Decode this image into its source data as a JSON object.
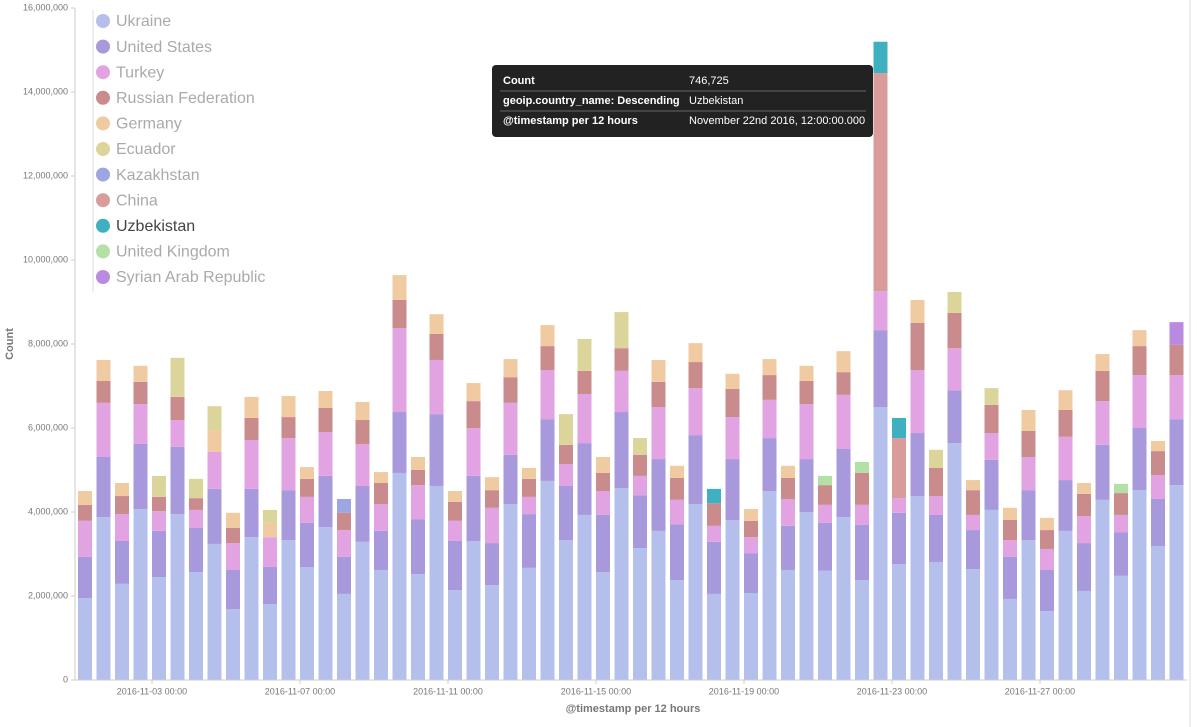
{
  "chart_data": {
    "type": "stacked-bar",
    "x_label": "@timestamp per 12 hours",
    "y_label": "Count",
    "x": [
      "2016-11-01 00:00",
      "2016-11-01 12:00",
      "2016-11-02 00:00",
      "2016-11-02 12:00",
      "2016-11-03 00:00",
      "2016-11-03 12:00",
      "2016-11-04 00:00",
      "2016-11-04 12:00",
      "2016-11-05 00:00",
      "2016-11-05 12:00",
      "2016-11-06 00:00",
      "2016-11-06 12:00",
      "2016-11-07 00:00",
      "2016-11-07 12:00",
      "2016-11-08 00:00",
      "2016-11-08 12:00",
      "2016-11-09 00:00",
      "2016-11-09 12:00",
      "2016-11-10 00:00",
      "2016-11-10 12:00",
      "2016-11-11 00:00",
      "2016-11-11 12:00",
      "2016-11-12 00:00",
      "2016-11-12 12:00",
      "2016-11-13 00:00",
      "2016-11-13 12:00",
      "2016-11-14 00:00",
      "2016-11-14 12:00",
      "2016-11-15 00:00",
      "2016-11-15 12:00",
      "2016-11-16 00:00",
      "2016-11-16 12:00",
      "2016-11-17 00:00",
      "2016-11-17 12:00",
      "2016-11-18 00:00",
      "2016-11-18 12:00",
      "2016-11-19 00:00",
      "2016-11-19 12:00",
      "2016-11-20 00:00",
      "2016-11-20 12:00",
      "2016-11-21 00:00",
      "2016-11-21 12:00",
      "2016-11-22 00:00",
      "2016-11-22 12:00",
      "2016-11-23 00:00",
      "2016-11-23 12:00",
      "2016-11-24 00:00",
      "2016-11-24 12:00",
      "2016-11-25 00:00",
      "2016-11-25 12:00",
      "2016-11-26 00:00",
      "2016-11-26 12:00",
      "2016-11-27 00:00",
      "2016-11-27 12:00",
      "2016-11-28 00:00",
      "2016-11-28 12:00",
      "2016-11-29 00:00",
      "2016-11-29 12:00",
      "2016-11-30 00:00",
      "2016-11-30 12:00"
    ],
    "xticks": [
      "2016-11-03 00:00",
      "2016-11-07 00:00",
      "2016-11-11 00:00",
      "2016-11-15 00:00",
      "2016-11-19 00:00",
      "2016-11-23 00:00",
      "2016-11-27 00:00"
    ],
    "ylim": [
      0,
      16000000
    ],
    "yticks": [
      {
        "value": 0,
        "label": "0"
      },
      {
        "value": 2000000,
        "label": "2,000,000"
      },
      {
        "value": 4000000,
        "label": "4,000,000"
      },
      {
        "value": 6000000,
        "label": "6,000,000"
      },
      {
        "value": 8000000,
        "label": "8,000,000"
      },
      {
        "value": 10000000,
        "label": "10,000,000"
      },
      {
        "value": 12000000,
        "label": "12,000,000"
      },
      {
        "value": 14000000,
        "label": "14,000,000"
      },
      {
        "value": 16000000,
        "label": "16,000,000"
      }
    ],
    "legend": "top-left",
    "series": [
      {
        "name": "Ukraine",
        "color": "#b4c0eb",
        "values": [
          1950000,
          3880000,
          2290000,
          4070000,
          2450000,
          3950000,
          2570000,
          3240000,
          1690000,
          3400000,
          1810000,
          3330000,
          2690000,
          3640000,
          2050000,
          3290000,
          2620000,
          4930000,
          2520000,
          4620000,
          2140000,
          3310000,
          2260000,
          4190000,
          2670000,
          4740000,
          3330000,
          3930000,
          2570000,
          4570000,
          3140000,
          3550000,
          2380000,
          4190000,
          2050000,
          3810000,
          2070000,
          4500000,
          2620000,
          4000000,
          2600000,
          3880000,
          2380000,
          6500000,
          2760000,
          4380000,
          2810000,
          5640000,
          2640000,
          4050000,
          1930000,
          3330000,
          1640000,
          3550000,
          2120000,
          4290000,
          2480000,
          4520000,
          3190000,
          4640000
        ]
      },
      {
        "name": "United States",
        "color": "#a898dc",
        "values": [
          980000,
          1430000,
          1020000,
          1550000,
          1100000,
          1600000,
          1050000,
          1310000,
          930000,
          1150000,
          880000,
          1190000,
          1050000,
          1220000,
          880000,
          1330000,
          930000,
          1450000,
          1310000,
          1710000,
          1170000,
          1550000,
          1000000,
          1170000,
          1280000,
          1470000,
          1290000,
          1710000,
          1360000,
          1810000,
          1260000,
          1710000,
          1330000,
          1640000,
          1240000,
          1450000,
          950000,
          1260000,
          1050000,
          1260000,
          1140000,
          1620000,
          1310000,
          1830000,
          1220000,
          1500000,
          1120000,
          1260000,
          930000,
          1190000,
          1000000,
          1190000,
          980000,
          1210000,
          1140000,
          1310000,
          1040000,
          1480000,
          1120000,
          1570000
        ]
      },
      {
        "name": "Turkey",
        "color": "#e2a3e2",
        "values": [
          860000,
          1290000,
          640000,
          950000,
          470000,
          640000,
          430000,
          880000,
          640000,
          1160000,
          710000,
          1240000,
          620000,
          1040000,
          640000,
          1000000,
          640000,
          2000000,
          810000,
          1290000,
          480000,
          1140000,
          840000,
          1240000,
          410000,
          1170000,
          520000,
          1170000,
          570000,
          980000,
          460000,
          1240000,
          580000,
          1120000,
          380000,
          1000000,
          380000,
          910000,
          640000,
          1310000,
          430000,
          1290000,
          480000,
          930000,
          350000,
          1500000,
          450000,
          1000000,
          360000,
          640000,
          400000,
          790000,
          500000,
          1030000,
          640000,
          1040000,
          410000,
          1260000,
          570000,
          1050000
        ]
      },
      {
        "name": "Russian Federation",
        "color": "#c98b8b",
        "values": [
          380000,
          520000,
          430000,
          530000,
          340000,
          550000,
          280000,
          null,
          360000,
          530000,
          null,
          500000,
          430000,
          580000,
          410000,
          570000,
          500000,
          670000,
          360000,
          620000,
          450000,
          640000,
          420000,
          610000,
          430000,
          570000,
          460000,
          550000,
          430000,
          540000,
          500000,
          600000,
          520000,
          620000,
          540000,
          670000,
          390000,
          590000,
          500000,
          550000,
          470000,
          540000,
          760000,
          null,
          null,
          1120000,
          670000,
          840000,
          590000,
          670000,
          480000,
          620000,
          450000,
          640000,
          530000,
          720000,
          520000,
          690000,
          570000,
          720000
        ]
      },
      {
        "name": "Germany",
        "color": "#f0caa0",
        "values": [
          330000,
          500000,
          310000,
          380000,
          null,
          null,
          null,
          520000,
          360000,
          500000,
          340000,
          500000,
          280000,
          400000,
          null,
          430000,
          260000,
          590000,
          310000,
          470000,
          260000,
          430000,
          310000,
          430000,
          260000,
          500000,
          null,
          null,
          380000,
          null,
          null,
          520000,
          290000,
          450000,
          null,
          360000,
          280000,
          380000,
          290000,
          360000,
          null,
          500000,
          null,
          null,
          null,
          550000,
          null,
          null,
          240000,
          null,
          290000,
          500000,
          290000,
          470000,
          260000,
          400000,
          null,
          380000,
          240000,
          null
        ]
      },
      {
        "name": "Ecuador",
        "color": "#dbd59c",
        "values": [
          null,
          null,
          null,
          null,
          500000,
          930000,
          460000,
          570000,
          null,
          null,
          310000,
          null,
          null,
          null,
          null,
          null,
          null,
          null,
          null,
          null,
          null,
          null,
          null,
          null,
          null,
          null,
          730000,
          760000,
          null,
          860000,
          400000,
          null,
          null,
          null,
          null,
          null,
          null,
          null,
          null,
          null,
          null,
          null,
          null,
          null,
          null,
          null,
          430000,
          500000,
          null,
          400000,
          null,
          null,
          null,
          null,
          null,
          null,
          null,
          null,
          null,
          null
        ]
      },
      {
        "name": "Kazakhstan",
        "color": "#9ea5e3",
        "values": [
          null,
          null,
          null,
          null,
          null,
          null,
          null,
          null,
          null,
          null,
          null,
          null,
          null,
          null,
          330000,
          null,
          null,
          null,
          null,
          null,
          null,
          null,
          null,
          null,
          null,
          null,
          null,
          null,
          null,
          null,
          null,
          null,
          null,
          null,
          null,
          null,
          null,
          null,
          null,
          null,
          null,
          null,
          null,
          null,
          null,
          null,
          null,
          null,
          null,
          null,
          null,
          null,
          null,
          null,
          null,
          null,
          null,
          null,
          null,
          null
        ]
      },
      {
        "name": "China",
        "color": "#d99c9a",
        "values": [
          null,
          null,
          null,
          null,
          null,
          null,
          null,
          null,
          null,
          null,
          null,
          null,
          null,
          null,
          null,
          null,
          null,
          null,
          null,
          null,
          null,
          null,
          null,
          null,
          null,
          null,
          null,
          null,
          null,
          null,
          null,
          null,
          null,
          null,
          null,
          null,
          null,
          null,
          null,
          null,
          null,
          null,
          null,
          5190000,
          1430000,
          null,
          null,
          null,
          null,
          null,
          null,
          null,
          null,
          null,
          null,
          null,
          null,
          null,
          null,
          null
        ]
      },
      {
        "name": "Uzbekistan",
        "color": "#3fb0bf",
        "values": [
          null,
          null,
          null,
          null,
          null,
          null,
          null,
          null,
          null,
          null,
          null,
          null,
          null,
          null,
          null,
          null,
          null,
          null,
          null,
          null,
          null,
          null,
          null,
          null,
          null,
          null,
          null,
          null,
          null,
          null,
          null,
          null,
          null,
          null,
          340000,
          null,
          null,
          null,
          null,
          null,
          null,
          null,
          null,
          746725,
          480000,
          null,
          null,
          null,
          null,
          null,
          null,
          null,
          null,
          null,
          null,
          null,
          null,
          null,
          null,
          null
        ]
      },
      {
        "name": "United Kingdom",
        "color": "#b3e0a5",
        "values": [
          null,
          null,
          null,
          null,
          null,
          null,
          null,
          null,
          null,
          null,
          null,
          null,
          null,
          null,
          null,
          null,
          null,
          null,
          null,
          null,
          null,
          null,
          null,
          null,
          null,
          null,
          null,
          null,
          null,
          null,
          null,
          null,
          null,
          null,
          null,
          null,
          null,
          null,
          null,
          null,
          220000,
          null,
          260000,
          null,
          null,
          null,
          null,
          null,
          null,
          null,
          null,
          null,
          null,
          null,
          null,
          null,
          220000,
          null,
          null,
          null
        ]
      },
      {
        "name": "Syrian Arab Republic",
        "color": "#b98ae0",
        "values": [
          null,
          null,
          null,
          null,
          null,
          null,
          null,
          null,
          null,
          null,
          null,
          null,
          null,
          null,
          null,
          null,
          null,
          null,
          null,
          null,
          null,
          null,
          null,
          null,
          null,
          null,
          null,
          null,
          null,
          null,
          null,
          null,
          null,
          null,
          null,
          null,
          null,
          null,
          null,
          null,
          null,
          null,
          null,
          null,
          null,
          null,
          null,
          null,
          null,
          null,
          null,
          null,
          null,
          null,
          null,
          null,
          null,
          null,
          null,
          540000
        ]
      }
    ],
    "tooltip": {
      "rows": [
        [
          "Count",
          "746,725"
        ],
        [
          "geoip.country_name: Descending",
          "Uzbekistan"
        ],
        [
          "@timestamp per 12 hours",
          "November 22nd 2016, 12:00:00.000"
        ]
      ]
    }
  }
}
